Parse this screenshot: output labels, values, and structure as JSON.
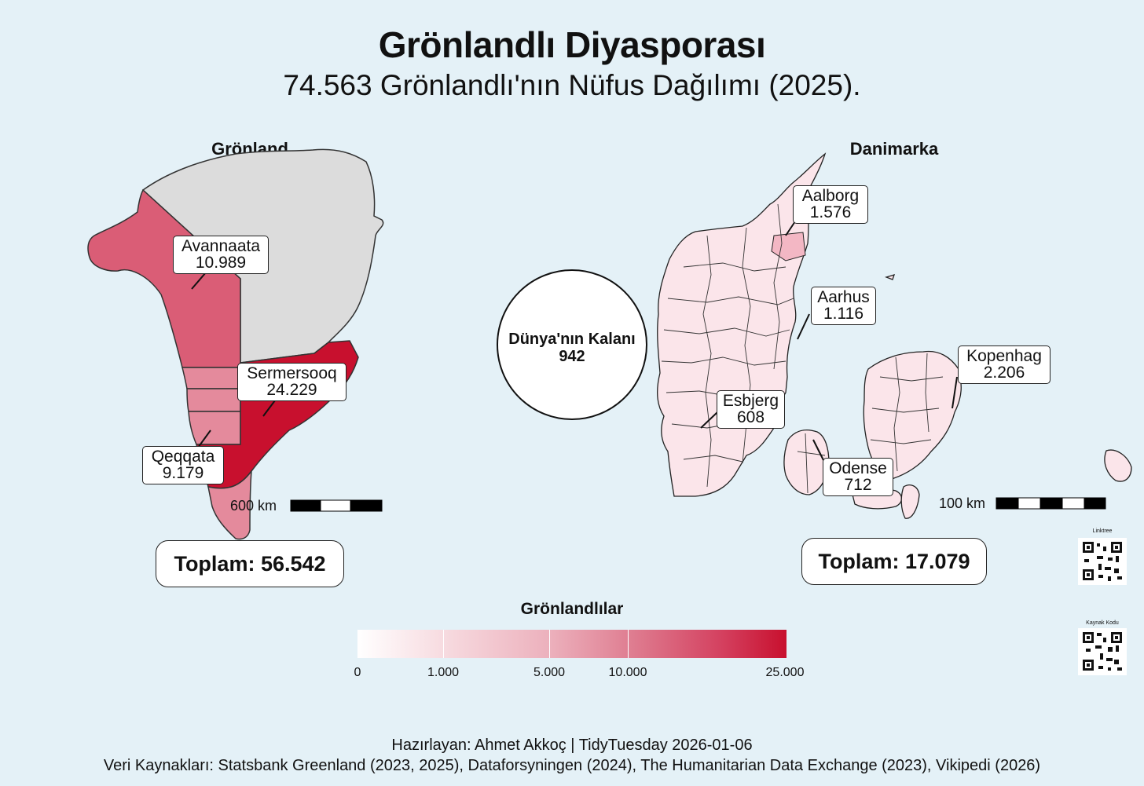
{
  "title": "Grönlandlı Diyasporası",
  "subtitle": "74.563 Grönlandlı'nın Nüfus Dağılımı (2025).",
  "greenland": {
    "panel_title": "Grönland",
    "regions": [
      {
        "name": "Avannaata",
        "value": "10.989"
      },
      {
        "name": "Sermersooq",
        "value": "24.229"
      },
      {
        "name": "Qeqqata",
        "value": "9.179"
      }
    ],
    "scale_label": "600 km",
    "total": "Toplam: 56.542"
  },
  "denmark": {
    "panel_title": "Danimarka",
    "cities": [
      {
        "name": "Aalborg",
        "value": "1.576"
      },
      {
        "name": "Aarhus",
        "value": "1.116"
      },
      {
        "name": "Kopenhag",
        "value": "2.206"
      },
      {
        "name": "Esbjerg",
        "value": "608"
      },
      {
        "name": "Odense",
        "value": "712"
      }
    ],
    "scale_label": "100 km",
    "total": "Toplam: 17.079"
  },
  "world": {
    "label": "Dünya'nın Kalanı",
    "value": "942"
  },
  "legend": {
    "title": "Grönlandlılar",
    "ticks": [
      "0",
      "1.000",
      "5.000",
      "10.000",
      "25.000"
    ],
    "low_color": "#ffffff",
    "high_color": "#c8102e"
  },
  "qr": {
    "linktree": "Linktree",
    "source": "Kaynak Kodu"
  },
  "footer": {
    "line1": "Hazırlayan: Ahmet Akkoç | TidyTuesday 2026-01-06",
    "line2": "Veri Kaynakları: Statsbank Greenland (2023, 2025), Dataforsyningen (2024), The Humanitarian Data Exchange (2023), Vikipedi (2026)"
  }
}
